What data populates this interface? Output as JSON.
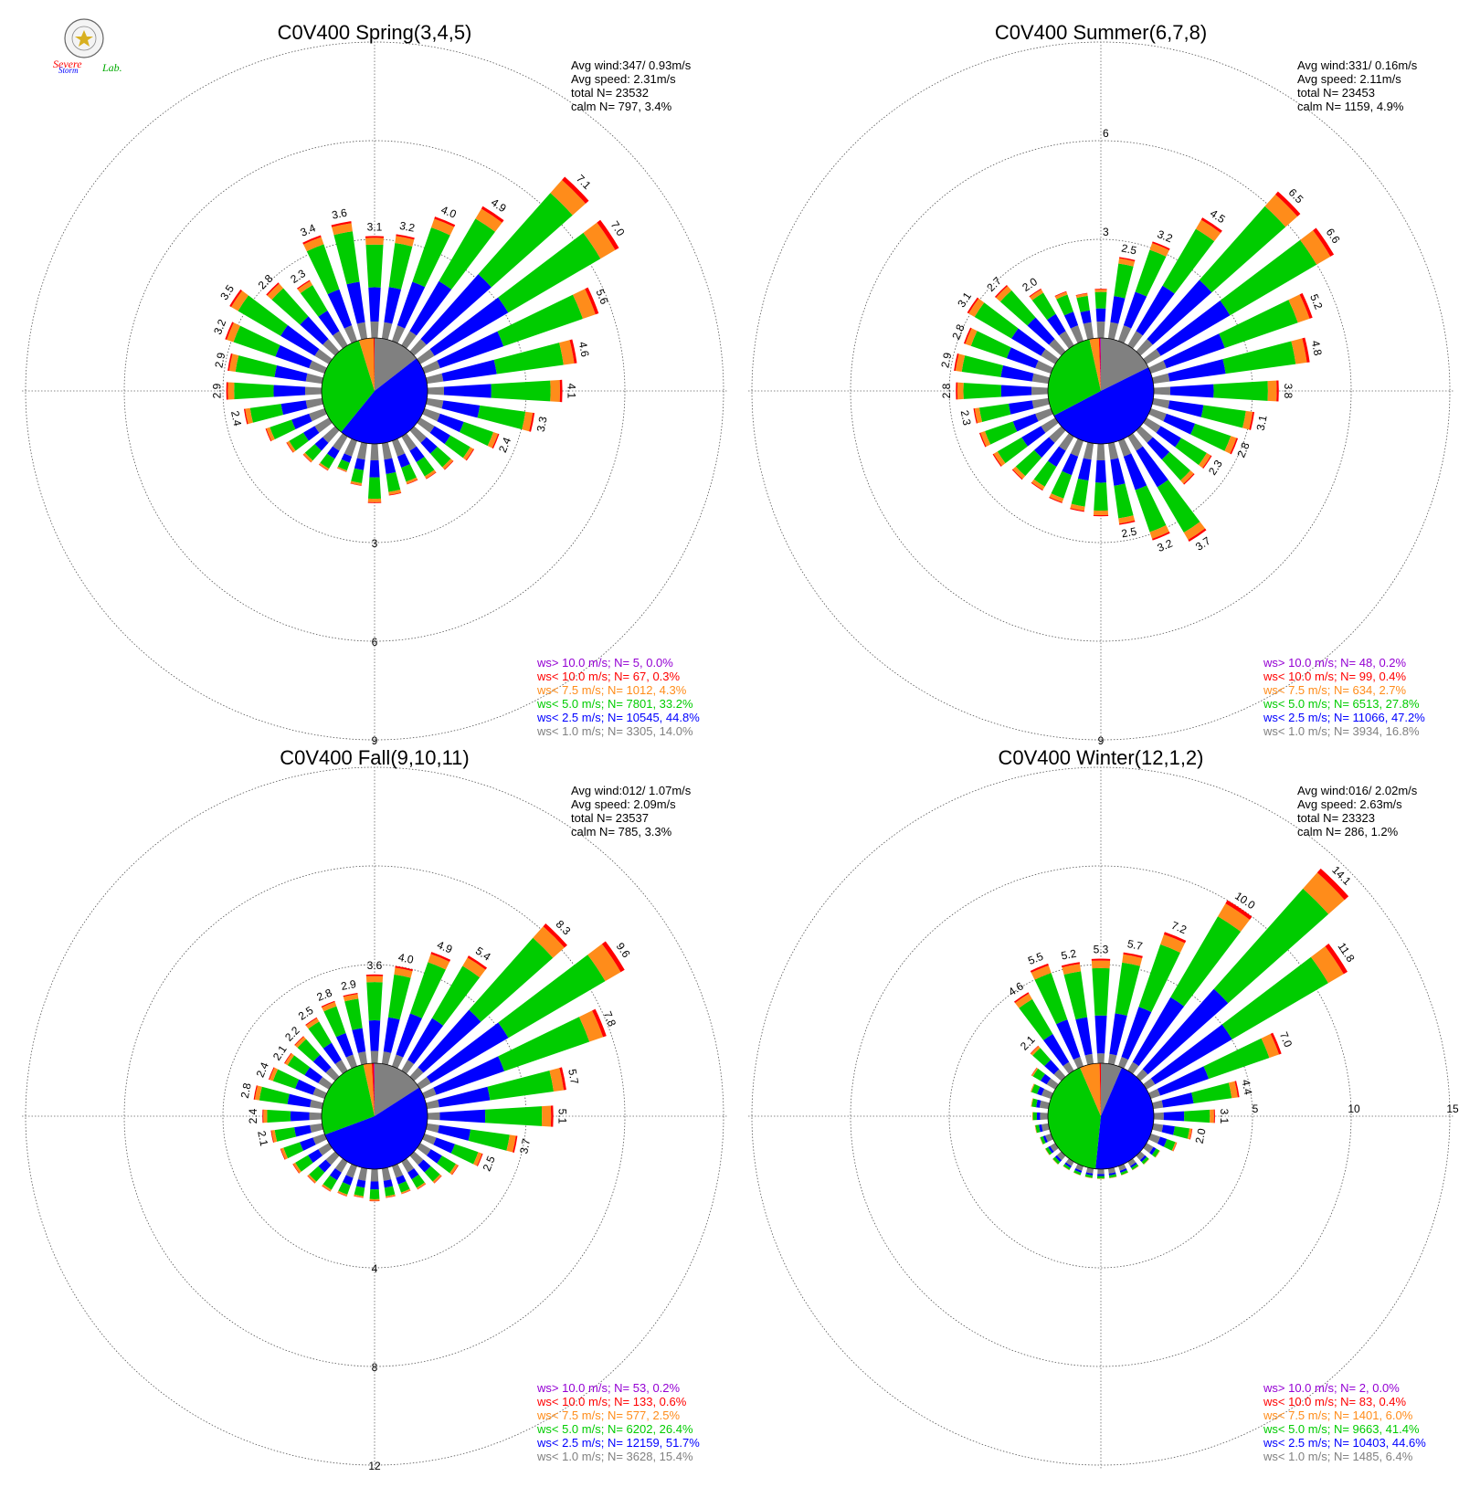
{
  "colors": {
    "calm": "#808080",
    "b1": "#0000ff",
    "b2": "#00cc00",
    "b3": "#ff8c1a",
    "b4": "#ff0000",
    "b5": "#9400d3"
  },
  "logo": {
    "text_a": "Severe",
    "text_b": "Storm",
    "text_c": "Lab."
  },
  "chart_data": [
    {
      "type": "wind-rose",
      "title": "C0V400 Spring(3,4,5)",
      "rmax": 9,
      "ring_labels": [
        "3",
        "6",
        "9"
      ],
      "stats": {
        "avg_wind": "Avg wind:347/ 0.93m/s",
        "avg_speed": "Avg speed: 2.31m/s",
        "total": "total N=      23532",
        "calm": "calm N=    797,   3.4%"
      },
      "legend": [
        "ws> 10.0 m/s; N=      5,  0.0%",
        "ws< 10.0 m/s; N=    67,  0.3%",
        "ws<  7.5 m/s; N=  1012,  4.3%",
        "ws<  5.0 m/s; N=  7801, 33.2%",
        "ws<  2.5 m/s; N= 10545, 44.8%",
        "ws<  1.0 m/s; N=  3305, 14.0%"
      ],
      "pie": [
        14.0,
        44.8,
        33.2,
        4.3,
        0.3,
        0.0
      ],
      "sector_totals": [
        3.1,
        3.2,
        4.0,
        4.9,
        7.1,
        7.0,
        5.6,
        4.6,
        4.1,
        3.3,
        2.4,
        1.9,
        1.6,
        1.5,
        1.4,
        1.6,
        1.8,
        1.3,
        1.0,
        1.2,
        1.3,
        1.5,
        1.9,
        2.4,
        2.9,
        2.9,
        3.2,
        3.5,
        2.8,
        2.3,
        3.4,
        3.6
      ],
      "sector_labels": [
        "3.1",
        "3.2",
        "4.0",
        "4.9",
        "7.1",
        "7.0",
        "5.6",
        "4.6",
        "4.1",
        "3.3",
        "2.4",
        "",
        "",
        "",
        "",
        "",
        "",
        "",
        "",
        "",
        "",
        "",
        "",
        "2.4",
        "2.9",
        "2.9",
        "3.2",
        "3.5",
        "2.8",
        "2.3",
        "3.4",
        "3.6"
      ]
    },
    {
      "type": "wind-rose",
      "title": "C0V400 Summer(6,7,8)",
      "rmax": 9,
      "ring_labels": [
        "3",
        "6",
        "9"
      ],
      "stats": {
        "avg_wind": "Avg wind:331/ 0.16m/s",
        "avg_speed": "Avg speed: 2.11m/s",
        "total": "total N=      23453",
        "calm": "calm N=   1159,   4.9%"
      },
      "legend": [
        "ws> 10.0 m/s; N=    48,  0.2%",
        "ws< 10.0 m/s; N=    99,  0.4%",
        "ws<  7.5 m/s; N=   634,  2.7%",
        "ws<  5.0 m/s; N=  6513, 27.8%",
        "ws<  2.5 m/s; N= 11066, 47.2%",
        "ws<  1.0 m/s; N=  3934, 16.8%"
      ],
      "pie": [
        16.8,
        47.2,
        27.8,
        2.7,
        0.4,
        0.2
      ],
      "sector_totals": [
        1.5,
        2.5,
        3.2,
        4.5,
        6.5,
        6.6,
        5.2,
        4.8,
        3.8,
        3.1,
        2.8,
        2.3,
        2.2,
        3.7,
        3.2,
        2.5,
        2.2,
        2.1,
        2.0,
        1.9,
        2.0,
        2.2,
        2.3,
        2.3,
        2.8,
        2.9,
        2.8,
        3.1,
        2.7,
        2.0,
        1.6,
        1.4
      ],
      "sector_labels": [
        "",
        "2.5",
        "3.2",
        "4.5",
        "6.5",
        "6.6",
        "5.2",
        "4.8",
        "3.8",
        "3.1",
        "2.8",
        "2.3",
        "",
        "3.7",
        "3.2",
        "2.5",
        "",
        "",
        "",
        "",
        "",
        "",
        "",
        "2.3",
        "2.8",
        "2.9",
        "2.8",
        "3.1",
        "2.7",
        "2.0",
        "",
        ""
      ]
    },
    {
      "type": "wind-rose",
      "title": "C0V400 Fall(9,10,11)",
      "rmax": 12,
      "ring_labels": [
        "4",
        "8",
        "12"
      ],
      "stats": {
        "avg_wind": "Avg wind:012/ 1.07m/s",
        "avg_speed": "Avg speed: 2.09m/s",
        "total": "total N=      23537",
        "calm": "calm N=    785,   3.3%"
      },
      "legend": [
        "ws> 10.0 m/s; N=    53,  0.2%",
        "ws< 10.0 m/s; N=   133,  0.6%",
        "ws<  7.5 m/s; N=   577,  2.5%",
        "ws<  5.0 m/s; N=  6202, 26.4%",
        "ws<  2.5 m/s; N= 12159, 51.7%",
        "ws<  1.0 m/s; N=  3628, 15.4%"
      ],
      "pie": [
        15.4,
        51.7,
        26.4,
        2.5,
        0.6,
        0.2
      ],
      "sector_totals": [
        3.6,
        4.0,
        4.9,
        5.4,
        8.3,
        9.6,
        7.8,
        5.7,
        5.1,
        3.7,
        2.5,
        1.8,
        1.5,
        1.3,
        1.2,
        1.2,
        1.3,
        1.2,
        1.3,
        1.4,
        1.5,
        1.7,
        1.9,
        2.1,
        2.4,
        2.8,
        2.4,
        2.1,
        2.2,
        2.5,
        2.8,
        2.9
      ],
      "sector_labels": [
        "3.6",
        "4.0",
        "4.9",
        "5.4",
        "8.3",
        "9.6",
        "7.8",
        "5.7",
        "5.1",
        "3.7",
        "2.5",
        "",
        "",
        "",
        "",
        "",
        "",
        "",
        "",
        "",
        "",
        "",
        "",
        "2.1",
        "2.4",
        "2.8",
        "2.4",
        "2.1",
        "2.2",
        "2.5",
        "2.8",
        "2.9"
      ]
    },
    {
      "type": "wind-rose",
      "title": "C0V400 Winter(12,1,2)",
      "rmax": 15,
      "ring_labels": [
        "5",
        "10",
        "15"
      ],
      "stats": {
        "avg_wind": "Avg wind:016/ 2.02m/s",
        "avg_speed": "Avg speed: 2.63m/s",
        "total": "total N=      23323",
        "calm": "calm N=    286,   1.2%"
      },
      "legend": [
        "ws> 10.0 m/s; N=      2,  0.0%",
        "ws< 10.0 m/s; N=    83,  0.4%",
        "ws<  7.5 m/s; N=  1401,  6.0%",
        "ws<  5.0 m/s; N=  9663, 41.4%",
        "ws<  2.5 m/s; N= 10403, 44.6%",
        "ws<  1.0 m/s; N=  1485,  6.4%"
      ],
      "pie": [
        6.4,
        44.6,
        41.4,
        6.0,
        0.4,
        0.0
      ],
      "sector_totals": [
        5.3,
        5.7,
        7.2,
        10.0,
        14.1,
        11.8,
        7.0,
        4.4,
        3.1,
        2.0,
        1.4,
        0.8,
        0.6,
        0.5,
        0.5,
        0.5,
        0.5,
        0.5,
        0.5,
        0.5,
        0.6,
        0.6,
        0.6,
        0.7,
        0.8,
        0.9,
        1.1,
        1.4,
        2.1,
        4.6,
        5.5,
        5.2
      ],
      "sector_labels": [
        "5.3",
        "5.7",
        "7.2",
        "10.0",
        "14.1",
        "11.8",
        "7.0",
        "4.4",
        "3.1",
        "2.0",
        "",
        "",
        "",
        "",
        "",
        "",
        "",
        "",
        "",
        "",
        "",
        "",
        "",
        "",
        "",
        "",
        "",
        "",
        "2.1",
        "4.6",
        "5.5",
        "5.2"
      ]
    }
  ]
}
